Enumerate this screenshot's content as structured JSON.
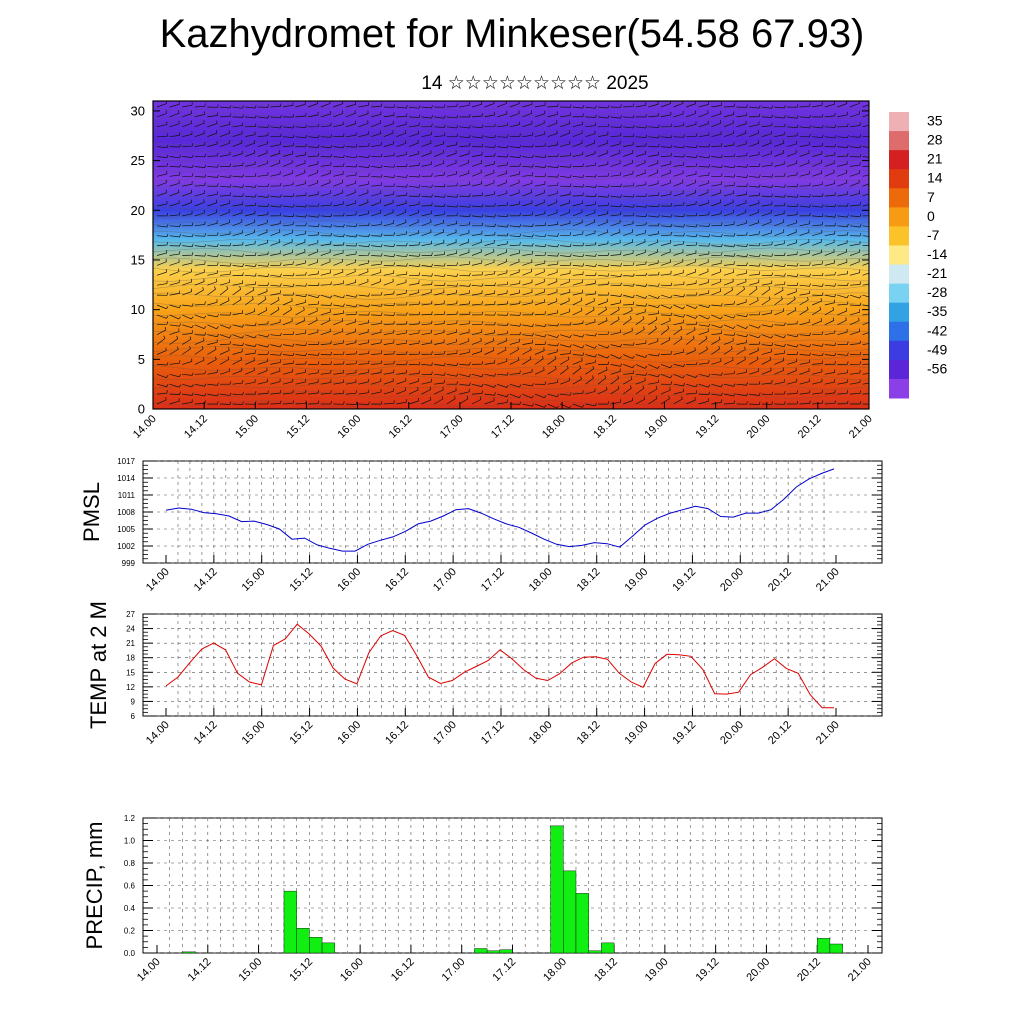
{
  "title": "Kazhydromet for Minkeser(54.58 67.93)",
  "subtitle": "14 ☆☆☆☆☆☆☆☆☆ 2025",
  "time_ticks": [
    "14.00",
    "14.12",
    "15.00",
    "15.12",
    "16.00",
    "16.12",
    "17.00",
    "17.12",
    "18.00",
    "18.12",
    "19.00",
    "19.12",
    "20.00",
    "20.12",
    "21.00"
  ],
  "chart_data": [
    {
      "type": "heatmap",
      "title": "",
      "xlabel": "",
      "ylabel": "",
      "y_ticks": [
        "0",
        "5",
        "10",
        "15",
        "20",
        "25",
        "30"
      ],
      "ylim": [
        0,
        31
      ],
      "overlay": "wind barbs",
      "colorbar_labels": [
        "35",
        "28",
        "21",
        "14",
        "7",
        "0",
        "-7",
        "-14",
        "-21",
        "-28",
        "-35",
        "-42",
        "-49",
        "-56"
      ],
      "colorbar_colors": [
        "#eeb0b5",
        "#de6c6c",
        "#d42020",
        "#e13c10",
        "#ec6a0a",
        "#f79a14",
        "#fcc22a",
        "#fde986",
        "#cfe9f2",
        "#7ad2f2",
        "#33a2e4",
        "#2e70e8",
        "#3b3ce2",
        "#5a26d8",
        "#8a40e6"
      ],
      "profile": [
        {
          "level": 0,
          "value": 21
        },
        {
          "level": 5,
          "value": 12
        },
        {
          "level": 10,
          "value": 2
        },
        {
          "level": 14,
          "value": -6
        },
        {
          "level": 17,
          "value": -28
        },
        {
          "level": 20,
          "value": -45
        },
        {
          "level": 23,
          "value": -58
        },
        {
          "level": 27,
          "value": -52
        },
        {
          "level": 31,
          "value": -56
        }
      ]
    },
    {
      "type": "line",
      "ylabel": "PMSL",
      "y_ticks": [
        "999",
        "1002",
        "1005",
        "1008",
        "1011",
        "1014",
        "1017"
      ],
      "ylim": [
        999,
        1017
      ],
      "series": [
        {
          "color": "#0000cc",
          "values": [
            1008.3,
            1008.7,
            1008.5,
            1007.9,
            1007.7,
            1007.3,
            1006.3,
            1006.4,
            1005.8,
            1005.0,
            1003.2,
            1003.4,
            1002.2,
            1001.6,
            1001.1,
            1001.1,
            1002.3,
            1003.0,
            1003.6,
            1004.6,
            1005.9,
            1006.4,
            1007.3,
            1008.4,
            1008.6,
            1007.8,
            1006.8,
            1005.9,
            1005.3,
            1004.3,
            1003.2,
            1002.3,
            1001.9,
            1002.1,
            1002.6,
            1002.4,
            1001.8,
            1003.7,
            1005.7,
            1006.9,
            1007.8,
            1008.4,
            1009.0,
            1008.6,
            1007.2,
            1007.1,
            1007.8,
            1007.8,
            1008.4,
            1010.2,
            1012.4,
            1013.8,
            1014.8,
            1015.6
          ]
        }
      ]
    },
    {
      "type": "line",
      "ylabel": "TEMP at 2 M",
      "y_ticks": [
        "6",
        "9",
        "12",
        "15",
        "18",
        "21",
        "24",
        "27"
      ],
      "ylim": [
        6,
        27
      ],
      "series": [
        {
          "color": "#dd0000",
          "values": [
            12.2,
            14.0,
            17.0,
            19.8,
            21.0,
            19.6,
            14.8,
            13.0,
            12.4,
            20.5,
            21.9,
            24.9,
            22.9,
            20.4,
            15.9,
            13.6,
            12.6,
            19.0,
            22.5,
            23.6,
            22.6,
            18.5,
            14.0,
            12.7,
            13.3,
            15.0,
            16.2,
            17.4,
            19.6,
            17.8,
            15.5,
            13.8,
            13.3,
            14.7,
            16.9,
            18.1,
            18.2,
            17.7,
            14.8,
            13.0,
            11.9,
            16.8,
            18.7,
            18.6,
            18.3,
            15.6,
            10.6,
            10.5,
            10.9,
            14.5,
            16.0,
            17.8,
            15.8,
            14.8,
            10.4,
            7.7,
            7.7
          ]
        }
      ]
    },
    {
      "type": "bar",
      "ylabel": "PRECIP, mm",
      "y_ticks": [
        "0.0",
        "0.2",
        "0.4",
        "0.6",
        "0.8",
        "1.0",
        "1.2"
      ],
      "ylim": [
        0,
        1.2
      ],
      "bar_color": "#11ee11",
      "bars": [
        {
          "t": 2,
          "value": 0.01
        },
        {
          "t": 10,
          "value": 0.55
        },
        {
          "t": 11,
          "value": 0.22
        },
        {
          "t": 12,
          "value": 0.14
        },
        {
          "t": 13,
          "value": 0.09
        },
        {
          "t": 25,
          "value": 0.04
        },
        {
          "t": 26,
          "value": 0.02
        },
        {
          "t": 27,
          "value": 0.03
        },
        {
          "t": 31,
          "value": 1.13
        },
        {
          "t": 32,
          "value": 0.73
        },
        {
          "t": 33,
          "value": 0.53
        },
        {
          "t": 34,
          "value": 0.02
        },
        {
          "t": 35,
          "value": 0.09
        },
        {
          "t": 52,
          "value": 0.13
        },
        {
          "t": 53,
          "value": 0.08
        }
      ]
    }
  ]
}
